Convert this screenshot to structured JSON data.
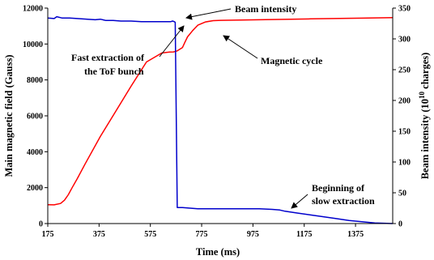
{
  "chart_data": {
    "type": "line",
    "xlabel": "Time (ms)",
    "ylabel_left": "Main magnetic field (Gauss)",
    "ylabel_right": {
      "base": "Beam intensity (10",
      "sup": "10",
      "tail": " charges)"
    },
    "xlim": [
      175,
      1520
    ],
    "ylim_left": [
      0,
      12000
    ],
    "ylim_right": [
      0,
      350
    ],
    "x_ticks": [
      175,
      375,
      575,
      775,
      975,
      1175,
      1375
    ],
    "y_left_ticks": [
      0,
      2000,
      4000,
      6000,
      8000,
      10000,
      12000
    ],
    "y_right_ticks": [
      0,
      50,
      100,
      150,
      200,
      250,
      300,
      350
    ],
    "grid": false,
    "series": [
      {
        "axis": "left",
        "color": "#ff0000",
        "x": [
          175,
          200,
          225,
          240,
          255,
          270,
          290,
          320,
          380,
          440,
          500,
          560,
          620,
          650,
          665,
          680,
          700,
          710,
          720,
          740,
          760,
          790,
          820,
          850,
          1000,
          1200,
          1400,
          1520
        ],
        "y": [
          1050,
          1040,
          1120,
          1300,
          1600,
          2000,
          2500,
          3300,
          4850,
          6250,
          7650,
          9000,
          9500,
          9550,
          9560,
          9620,
          9800,
          10100,
          10400,
          10750,
          11050,
          11230,
          11300,
          11320,
          11350,
          11400,
          11440,
          11470
        ]
      },
      {
        "axis": "right",
        "color": "#0000cc",
        "x": [
          175,
          200,
          210,
          230,
          260,
          290,
          330,
          360,
          380,
          400,
          430,
          460,
          500,
          540,
          580,
          620,
          640,
          655,
          662,
          668,
          672,
          680,
          700,
          730,
          760,
          800,
          900,
          1000,
          1050,
          1080,
          1100,
          1150,
          1200,
          1250,
          1300,
          1350,
          1400,
          1450,
          1520
        ],
        "y": [
          334,
          333,
          336,
          334,
          334,
          333,
          332,
          331,
          332,
          330,
          330,
          329,
          329,
          328,
          328,
          328,
          328,
          328,
          329,
          328,
          327,
          26,
          26,
          25,
          24,
          24,
          24,
          24,
          23,
          22,
          20,
          17,
          14,
          11,
          8,
          5,
          3,
          1,
          0
        ]
      }
    ],
    "annotations": {
      "beam_intensity": "Beam intensity",
      "fast_extraction_1": "Fast extraction of",
      "fast_extraction_2": "the ToF bunch",
      "magnetic_cycle": "Magnetic cycle",
      "slow_extraction_1": "Beginning of",
      "slow_extraction_2": "slow extraction"
    }
  }
}
